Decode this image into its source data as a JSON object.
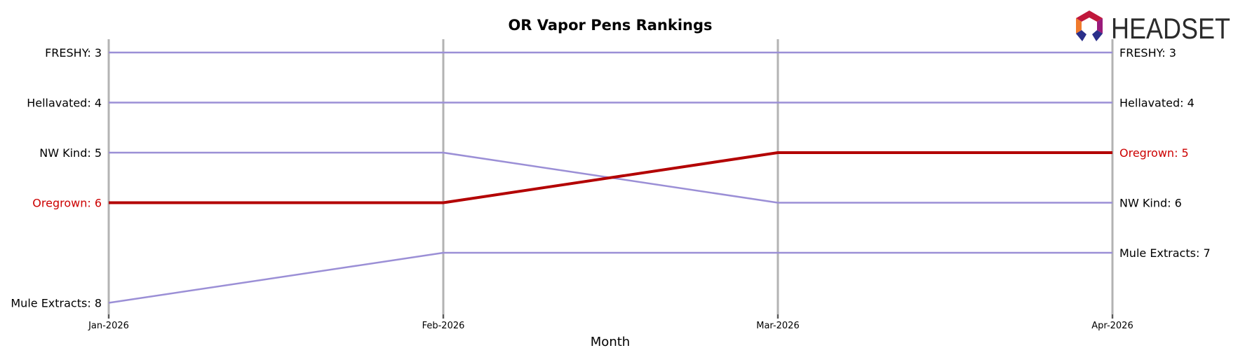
{
  "chart_data": {
    "type": "line",
    "title": "OR Vapor Pens Rankings",
    "xlabel": "Month",
    "ylabel": "",
    "x": [
      "Jan-2026",
      "Feb-2026",
      "Mar-2026",
      "Apr-2026"
    ],
    "y_direction": "inverted",
    "series": [
      {
        "name": "FRESHY",
        "values": [
          3,
          3,
          3,
          3
        ],
        "highlight": false
      },
      {
        "name": "Hellavated",
        "values": [
          4,
          4,
          4,
          4
        ],
        "highlight": false
      },
      {
        "name": "NW Kind",
        "values": [
          5,
          5,
          6,
          6
        ],
        "highlight": false
      },
      {
        "name": "Oregrown",
        "values": [
          6,
          6,
          5,
          5
        ],
        "highlight": true
      },
      {
        "name": "Mule Extracts",
        "values": [
          8,
          7,
          7,
          7
        ],
        "highlight": false
      }
    ],
    "start_labels": [
      "FRESHY: 3",
      "Hellavated: 4",
      "NW Kind: 5",
      "Oregrown: 6",
      "Mule Extracts: 8"
    ],
    "end_labels": [
      "FRESHY: 3",
      "Hellavated: 4",
      "Oregrown: 5",
      "NW Kind: 6",
      "Mule Extracts: 7"
    ],
    "colors": {
      "default_line": "#9b8fd6",
      "highlight_line": "#b30000",
      "highlight_label": "#cc0000",
      "month_gridline": "#b3b3b3"
    }
  },
  "logo": {
    "text": "HEADSET",
    "icon": "headset-hexagon-logo-icon"
  }
}
